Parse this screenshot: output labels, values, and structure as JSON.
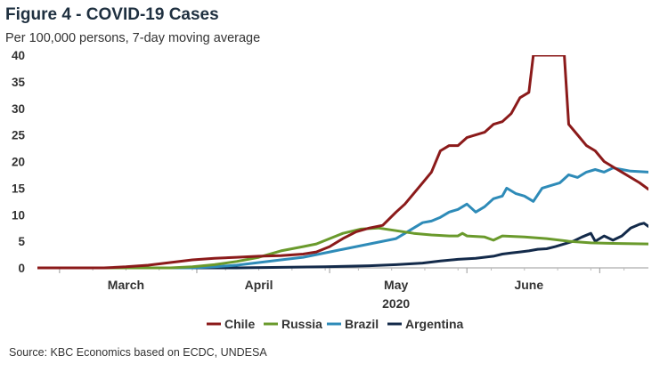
{
  "title": "Figure 4 - COVID-19 Cases",
  "subtitle": "Per 100,000 persons, 7-day moving average",
  "source": "Source: KBC Economics based on ECDC, UNDESA",
  "chart_data": {
    "type": "line",
    "xlabel": "2020",
    "ylabel": "",
    "ylim": [
      0,
      40
    ],
    "yticks": [
      0,
      5,
      10,
      15,
      20,
      25,
      30,
      35,
      40
    ],
    "grid": false,
    "legend": "bottom",
    "x_month_labels": [
      "March",
      "April",
      "May",
      "June"
    ],
    "x_month_centers": [
      15,
      45,
      76,
      106
    ],
    "x_range": [
      -5,
      133
    ],
    "x_ticks": [
      0,
      31,
      61,
      92,
      122
    ],
    "series": [
      {
        "name": "Chile",
        "color": "#8b1a1a",
        "points": [
          [
            -5,
            0
          ],
          [
            10,
            0
          ],
          [
            15,
            0.2
          ],
          [
            20,
            0.5
          ],
          [
            25,
            1.0
          ],
          [
            30,
            1.5
          ],
          [
            35,
            1.8
          ],
          [
            40,
            2.0
          ],
          [
            45,
            2.2
          ],
          [
            50,
            2.3
          ],
          [
            55,
            2.6
          ],
          [
            58,
            3.0
          ],
          [
            61,
            4.0
          ],
          [
            64,
            5.5
          ],
          [
            67,
            6.8
          ],
          [
            70,
            7.5
          ],
          [
            73,
            8.0
          ],
          [
            76,
            10.5
          ],
          [
            78,
            12
          ],
          [
            80,
            14
          ],
          [
            82,
            16
          ],
          [
            84,
            18
          ],
          [
            86,
            22
          ],
          [
            88,
            23
          ],
          [
            90,
            23
          ],
          [
            92,
            24.5
          ],
          [
            94,
            25
          ],
          [
            96,
            25.5
          ],
          [
            98,
            27
          ],
          [
            100,
            27.5
          ],
          [
            102,
            29
          ],
          [
            104,
            32
          ],
          [
            106,
            33
          ],
          [
            107,
            40
          ],
          [
            114,
            40
          ],
          [
            115,
            27
          ],
          [
            117,
            25
          ],
          [
            119,
            23
          ],
          [
            121,
            22
          ],
          [
            123,
            20
          ],
          [
            125,
            19
          ],
          [
            127,
            18
          ],
          [
            129,
            17
          ],
          [
            131,
            16
          ],
          [
            133,
            14.8
          ]
        ]
      },
      {
        "name": "Russia",
        "color": "#6a9a2c",
        "points": [
          [
            -5,
            0
          ],
          [
            25,
            0
          ],
          [
            30,
            0.2
          ],
          [
            35,
            0.6
          ],
          [
            40,
            1.2
          ],
          [
            45,
            2.0
          ],
          [
            50,
            3.2
          ],
          [
            55,
            4.0
          ],
          [
            58,
            4.5
          ],
          [
            61,
            5.5
          ],
          [
            64,
            6.5
          ],
          [
            68,
            7.3
          ],
          [
            72,
            7.5
          ],
          [
            76,
            7.0
          ],
          [
            80,
            6.5
          ],
          [
            84,
            6.2
          ],
          [
            88,
            6.0
          ],
          [
            90,
            6.0
          ],
          [
            91,
            6.5
          ],
          [
            92,
            6.0
          ],
          [
            96,
            5.8
          ],
          [
            98,
            5.2
          ],
          [
            100,
            6.0
          ],
          [
            105,
            5.8
          ],
          [
            110,
            5.5
          ],
          [
            115,
            5.0
          ],
          [
            120,
            4.7
          ],
          [
            125,
            4.6
          ],
          [
            133,
            4.5
          ]
        ]
      },
      {
        "name": "Brazil",
        "color": "#2e8bb8",
        "points": [
          [
            -5,
            0
          ],
          [
            30,
            0
          ],
          [
            35,
            0.2
          ],
          [
            40,
            0.5
          ],
          [
            45,
            1.0
          ],
          [
            50,
            1.5
          ],
          [
            55,
            2.0
          ],
          [
            58,
            2.5
          ],
          [
            61,
            3.0
          ],
          [
            64,
            3.5
          ],
          [
            67,
            4.0
          ],
          [
            70,
            4.5
          ],
          [
            73,
            5.0
          ],
          [
            76,
            5.5
          ],
          [
            78,
            6.5
          ],
          [
            80,
            7.5
          ],
          [
            82,
            8.5
          ],
          [
            84,
            8.8
          ],
          [
            86,
            9.5
          ],
          [
            88,
            10.5
          ],
          [
            90,
            11
          ],
          [
            92,
            12
          ],
          [
            94,
            10.5
          ],
          [
            96,
            11.5
          ],
          [
            98,
            13
          ],
          [
            100,
            13.5
          ],
          [
            101,
            15
          ],
          [
            103,
            14
          ],
          [
            105,
            13.5
          ],
          [
            107,
            12.5
          ],
          [
            109,
            15
          ],
          [
            111,
            15.5
          ],
          [
            113,
            16
          ],
          [
            115,
            17.5
          ],
          [
            117,
            17
          ],
          [
            119,
            18
          ],
          [
            121,
            18.5
          ],
          [
            123,
            18
          ],
          [
            125,
            18.8
          ],
          [
            127,
            18.5
          ],
          [
            129,
            18.2
          ],
          [
            133,
            18
          ]
        ]
      },
      {
        "name": "Argentina",
        "color": "#132a4a",
        "points": [
          [
            -5,
            0
          ],
          [
            40,
            0
          ],
          [
            50,
            0.1
          ],
          [
            60,
            0.2
          ],
          [
            70,
            0.4
          ],
          [
            76,
            0.6
          ],
          [
            82,
            0.9
          ],
          [
            86,
            1.3
          ],
          [
            90,
            1.6
          ],
          [
            94,
            1.8
          ],
          [
            98,
            2.2
          ],
          [
            100,
            2.6
          ],
          [
            102,
            2.8
          ],
          [
            104,
            3.0
          ],
          [
            106,
            3.2
          ],
          [
            108,
            3.5
          ],
          [
            110,
            3.6
          ],
          [
            112,
            4.0
          ],
          [
            114,
            4.5
          ],
          [
            116,
            5.0
          ],
          [
            118,
            5.8
          ],
          [
            120,
            6.5
          ],
          [
            121,
            5.0
          ],
          [
            123,
            6.0
          ],
          [
            125,
            5.2
          ],
          [
            127,
            6.0
          ],
          [
            129,
            7.5
          ],
          [
            131,
            8.2
          ],
          [
            132,
            8.4
          ],
          [
            133,
            7.8
          ]
        ]
      }
    ]
  }
}
